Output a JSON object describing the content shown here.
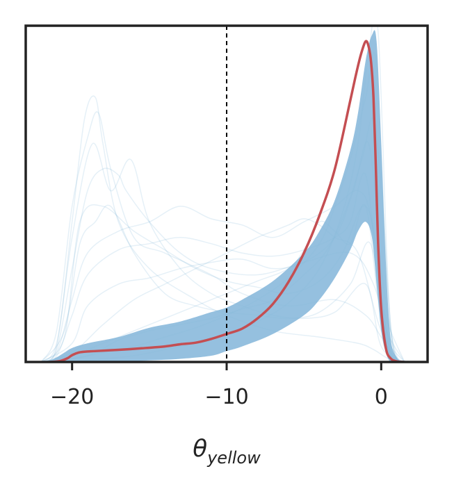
{
  "chart_data": {
    "type": "line",
    "title": "",
    "xlabel_symbol": "θ",
    "xlabel_subscript": "yellow",
    "ylabel": "",
    "xlim": [
      -23,
      3
    ],
    "ylim": [
      0,
      1.08
    ],
    "x_ticks": [
      -20,
      -10,
      0
    ],
    "x_tick_labels": [
      "−20",
      "−10",
      "0"
    ],
    "y_ticks_shown": false,
    "grid": false,
    "legend": "none",
    "vertical_reference_line": {
      "x": -10,
      "style": "dashed",
      "color": "#000000"
    },
    "colors": {
      "samples": "#8ab9dc",
      "mean": "#c44e52",
      "axes": "#222222",
      "reference": "#000000"
    },
    "series": [
      {
        "role": "mean density",
        "color": "#c44e52",
        "x": [
          -21.5,
          -20.8,
          -20.3,
          -20.0,
          -19.6,
          -19.2,
          -18.5,
          -17.0,
          -15.5,
          -14.0,
          -13.0,
          -12.0,
          -11.0,
          -10.0,
          -9.0,
          -8.0,
          -7.0,
          -6.0,
          -5.0,
          -4.0,
          -3.0,
          -2.0,
          -1.6,
          -1.3,
          -1.0,
          -0.8,
          -0.65,
          -0.5,
          -0.35,
          -0.2,
          0.0,
          0.3,
          0.6,
          1.0,
          1.5
        ],
        "y": [
          0.0,
          0.003,
          0.012,
          0.022,
          0.03,
          0.033,
          0.035,
          0.039,
          0.044,
          0.05,
          0.057,
          0.062,
          0.074,
          0.09,
          0.107,
          0.14,
          0.187,
          0.257,
          0.35,
          0.47,
          0.62,
          0.84,
          0.93,
          0.99,
          1.03,
          1.01,
          0.96,
          0.85,
          0.63,
          0.38,
          0.17,
          0.045,
          0.012,
          0.002,
          0.0
        ]
      }
    ],
    "sample_band": {
      "description": "posterior sample densities",
      "x": [
        -22.5,
        -21.5,
        -21.0,
        -20.5,
        -20.0,
        -19.0,
        -17.0,
        -15.0,
        -13.0,
        -11.0,
        -10.0,
        -9.0,
        -7.0,
        -5.0,
        -4.0,
        -3.0,
        -2.0,
        -1.5,
        -1.0,
        -0.6,
        -0.3,
        0.0,
        0.3,
        0.6,
        1.0,
        1.5,
        2.0
      ],
      "lower": [
        0.0,
        0.0,
        0.0,
        0.0,
        0.0,
        0.0,
        0.0,
        0.005,
        0.01,
        0.02,
        0.035,
        0.05,
        0.09,
        0.15,
        0.2,
        0.27,
        0.36,
        0.42,
        0.45,
        0.4,
        0.25,
        0.1,
        0.03,
        0.0,
        0.0,
        0.0,
        0.0
      ],
      "upper": [
        0.0,
        0.005,
        0.015,
        0.03,
        0.045,
        0.06,
        0.08,
        0.11,
        0.13,
        0.16,
        0.175,
        0.2,
        0.26,
        0.35,
        0.42,
        0.52,
        0.68,
        0.8,
        0.97,
        1.05,
        1.03,
        0.7,
        0.32,
        0.08,
        0.015,
        0.0,
        0.0
      ]
    },
    "sample_curves": [
      {
        "x": [
          -22,
          -21,
          -20,
          -19.2,
          -18.5,
          -18,
          -17,
          -15,
          -12,
          -10,
          -7,
          -4,
          -1.5,
          -0.5,
          0.5,
          1.5
        ],
        "y": [
          0,
          0.05,
          0.45,
          0.78,
          0.85,
          0.7,
          0.45,
          0.3,
          0.2,
          0.15,
          0.1,
          0.08,
          0.06,
          0.04,
          0.01,
          0
        ]
      },
      {
        "x": [
          -22,
          -21,
          -20,
          -19,
          -18.3,
          -17.5,
          -16,
          -14,
          -11,
          -9,
          -6,
          -3,
          -1,
          0,
          1,
          2
        ],
        "y": [
          0,
          0.1,
          0.5,
          0.72,
          0.8,
          0.62,
          0.4,
          0.35,
          0.28,
          0.22,
          0.18,
          0.2,
          0.15,
          0.08,
          0.01,
          0
        ]
      },
      {
        "x": [
          -22,
          -21,
          -20,
          -19,
          -18,
          -17,
          -16.5,
          -15,
          -13,
          -11,
          -8,
          -5,
          -2,
          -0.5,
          0.8,
          2
        ],
        "y": [
          0,
          0.04,
          0.3,
          0.55,
          0.62,
          0.6,
          0.55,
          0.45,
          0.35,
          0.3,
          0.28,
          0.32,
          0.35,
          0.25,
          0.03,
          0
        ]
      },
      {
        "x": [
          -22,
          -21,
          -20,
          -19,
          -17,
          -15,
          -13,
          -11,
          -9,
          -7,
          -5,
          -3,
          -1.5,
          -0.6,
          0.4,
          1.5
        ],
        "y": [
          0,
          0.03,
          0.2,
          0.35,
          0.42,
          0.45,
          0.5,
          0.46,
          0.44,
          0.4,
          0.45,
          0.5,
          0.55,
          0.45,
          0.05,
          0
        ]
      },
      {
        "x": [
          -22,
          -21,
          -20,
          -19,
          -17,
          -15,
          -13,
          -11,
          -9,
          -7,
          -5,
          -3,
          -2,
          -1,
          0,
          1.5
        ],
        "y": [
          0,
          0.02,
          0.15,
          0.28,
          0.36,
          0.38,
          0.4,
          0.38,
          0.35,
          0.34,
          0.36,
          0.4,
          0.45,
          0.6,
          0.2,
          0
        ]
      },
      {
        "x": [
          -22,
          -20.5,
          -19.5,
          -18,
          -16,
          -14,
          -12,
          -10,
          -8,
          -6,
          -4,
          -2.5,
          -1.2,
          -0.4,
          0.5,
          1.5
        ],
        "y": [
          0,
          0.08,
          0.45,
          0.5,
          0.42,
          0.36,
          0.3,
          0.26,
          0.24,
          0.22,
          0.26,
          0.35,
          0.5,
          0.4,
          0.05,
          0
        ]
      },
      {
        "x": [
          -22,
          -20,
          -19,
          -17,
          -15,
          -13,
          -11,
          -9,
          -7,
          -5,
          -3,
          -1.8,
          -0.8,
          0,
          1,
          2
        ],
        "y": [
          0,
          0.06,
          0.18,
          0.25,
          0.27,
          0.3,
          0.32,
          0.33,
          0.3,
          0.32,
          0.4,
          0.55,
          0.7,
          0.3,
          0.02,
          0
        ]
      },
      {
        "x": [
          -22,
          -20,
          -18,
          -16,
          -14,
          -12,
          -10,
          -8,
          -6,
          -5,
          -4,
          -3,
          -2,
          -1,
          0,
          1.5
        ],
        "y": [
          0,
          0.02,
          0.06,
          0.1,
          0.14,
          0.18,
          0.22,
          0.26,
          0.3,
          0.36,
          0.45,
          0.42,
          0.38,
          0.5,
          0.15,
          0
        ]
      },
      {
        "x": [
          -22,
          -20,
          -18,
          -16,
          -14,
          -12,
          -10,
          -8,
          -6,
          -4,
          -3,
          -2,
          -1,
          -0.3,
          0.6,
          1.8
        ],
        "y": [
          0,
          0.01,
          0.03,
          0.05,
          0.08,
          0.11,
          0.15,
          0.2,
          0.27,
          0.38,
          0.5,
          0.65,
          0.85,
          0.95,
          0.1,
          0
        ]
      },
      {
        "x": [
          -22,
          -20,
          -18,
          -16,
          -14,
          -12,
          -10,
          -8,
          -6,
          -4,
          -2.5,
          -1.5,
          -0.8,
          -0.2,
          0.6,
          1.6
        ],
        "y": [
          0,
          0.0,
          0.01,
          0.02,
          0.04,
          0.06,
          0.09,
          0.13,
          0.19,
          0.3,
          0.48,
          0.7,
          1.0,
          1.06,
          0.12,
          0
        ]
      },
      {
        "x": [
          -22,
          -19,
          -17,
          -15,
          -13,
          -11,
          -9,
          -7,
          -5,
          -3.5,
          -2.2,
          -1.2,
          -0.5,
          0.1,
          0.8,
          2
        ],
        "y": [
          0,
          0.02,
          0.07,
          0.1,
          0.12,
          0.14,
          0.17,
          0.2,
          0.28,
          0.36,
          0.5,
          0.66,
          0.78,
          0.5,
          0.04,
          0
        ]
      },
      {
        "x": [
          -22,
          -20.5,
          -19.5,
          -18.5,
          -17.5,
          -16,
          -14,
          -12,
          -10,
          -8,
          -6,
          -4,
          -2,
          -0.7,
          0.4,
          1.5
        ],
        "y": [
          0,
          0.1,
          0.38,
          0.45,
          0.5,
          0.35,
          0.22,
          0.18,
          0.16,
          0.15,
          0.14,
          0.16,
          0.25,
          0.38,
          0.05,
          0
        ]
      },
      {
        "x": [
          -22,
          -21,
          -20,
          -18.7,
          -17.5,
          -16.2,
          -15,
          -13,
          -11,
          -9,
          -7,
          -5,
          -3,
          -1,
          0,
          1.5
        ],
        "y": [
          0,
          0.06,
          0.4,
          0.7,
          0.55,
          0.65,
          0.45,
          0.3,
          0.22,
          0.18,
          0.15,
          0.14,
          0.16,
          0.25,
          0.05,
          0
        ]
      },
      {
        "x": [
          -22,
          -20,
          -18,
          -16,
          -14,
          -12,
          -10,
          -8,
          -7,
          -6,
          -5,
          -4,
          -3,
          -1.5,
          0,
          1.5
        ],
        "y": [
          0,
          0.03,
          0.12,
          0.2,
          0.25,
          0.3,
          0.35,
          0.4,
          0.42,
          0.44,
          0.46,
          0.44,
          0.4,
          0.35,
          0.1,
          0
        ]
      }
    ]
  }
}
